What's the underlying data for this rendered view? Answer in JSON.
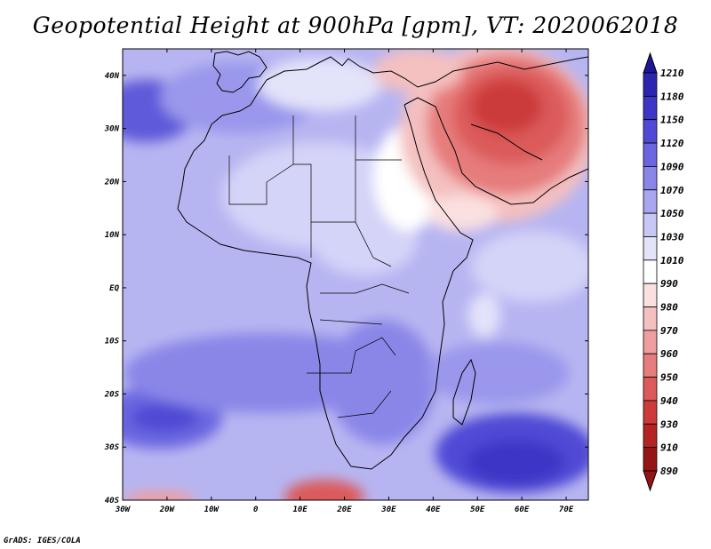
{
  "title": "Geopotential Height at 900hPa [gpm], VT: 2020062018",
  "footer": "GrADS: IGES/COLA",
  "map": {
    "lon_range": [
      -30,
      75
    ],
    "lat_range": [
      -40,
      45
    ],
    "x_ticks": [
      "30W",
      "20W",
      "10W",
      "0",
      "10E",
      "20E",
      "30E",
      "40E",
      "50E",
      "60E",
      "70E"
    ],
    "y_ticks": [
      "40N",
      "30N",
      "20N",
      "10N",
      "EQ",
      "10S",
      "20S",
      "30S",
      "40S"
    ]
  },
  "colorbar": {
    "levels": [
      "1210",
      "1180",
      "1150",
      "1120",
      "1090",
      "1070",
      "1050",
      "1030",
      "1010",
      "990",
      "980",
      "970",
      "960",
      "950",
      "940",
      "930",
      "910",
      "890"
    ],
    "colors": [
      "#1f1595",
      "#2c25b0",
      "#3c35c5",
      "#5049d5",
      "#6b66e0",
      "#8a86e8",
      "#a8a6ef",
      "#c7c6f5",
      "#e3e3fa",
      "#ffffff",
      "#fbe0e0",
      "#f4c0c0",
      "#ee9e9e",
      "#e67c7c",
      "#dc5a5a",
      "#cc3a3a",
      "#b52424",
      "#951515"
    ]
  }
}
